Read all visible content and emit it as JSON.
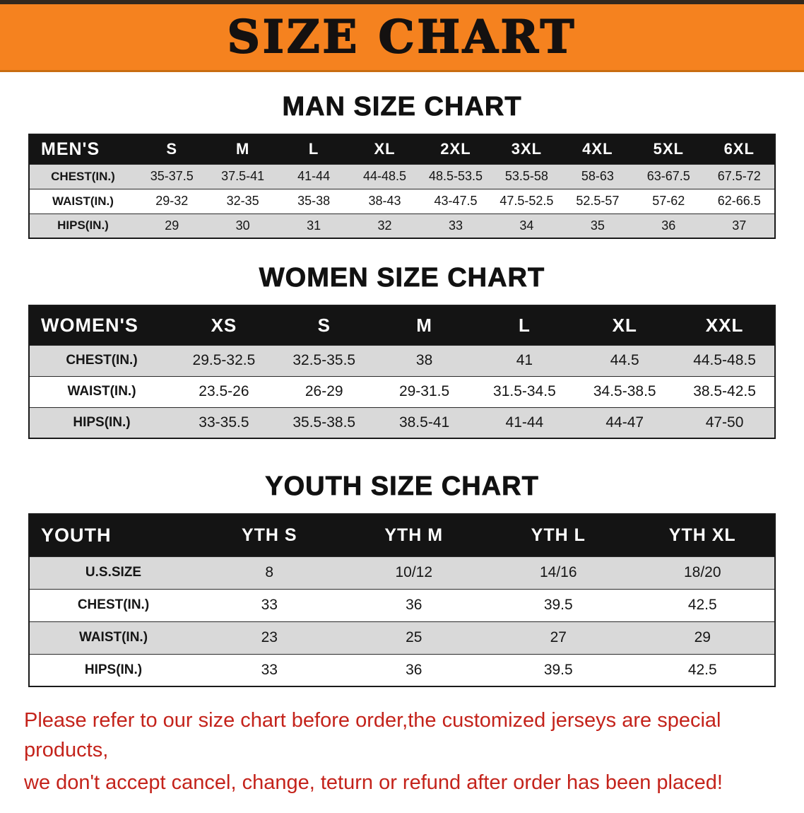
{
  "banner": {
    "title": "SIZE CHART"
  },
  "colors": {
    "banner_bg": "#F5821F",
    "table_header_bg": "#141414",
    "row_shaded": "#D9D9D9",
    "note_red": "#C4231B"
  },
  "chart_data": [
    {
      "type": "table",
      "title": "MAN SIZE CHART",
      "corner_label": "MEN'S",
      "columns": [
        "S",
        "M",
        "L",
        "XL",
        "2XL",
        "3XL",
        "4XL",
        "5XL",
        "6XL"
      ],
      "rows": [
        {
          "label": "CHEST(IN.)",
          "values": [
            "35-37.5",
            "37.5-41",
            "41-44",
            "44-48.5",
            "48.5-53.5",
            "53.5-58",
            "58-63",
            "63-67.5",
            "67.5-72"
          ]
        },
        {
          "label": "WAIST(IN.)",
          "values": [
            "29-32",
            "32-35",
            "35-38",
            "38-43",
            "43-47.5",
            "47.5-52.5",
            "52.5-57",
            "57-62",
            "62-66.5"
          ]
        },
        {
          "label": "HIPS(IN.)",
          "values": [
            "29",
            "30",
            "31",
            "32",
            "33",
            "34",
            "35",
            "36",
            "37"
          ]
        }
      ]
    },
    {
      "type": "table",
      "title": "WOMEN SIZE CHART",
      "corner_label": "WOMEN'S",
      "columns": [
        "XS",
        "S",
        "M",
        "L",
        "XL",
        "XXL"
      ],
      "rows": [
        {
          "label": "CHEST(IN.)",
          "values": [
            "29.5-32.5",
            "32.5-35.5",
            "38",
            "41",
            "44.5",
            "44.5-48.5"
          ]
        },
        {
          "label": "WAIST(IN.)",
          "values": [
            "23.5-26",
            "26-29",
            "29-31.5",
            "31.5-34.5",
            "34.5-38.5",
            "38.5-42.5"
          ]
        },
        {
          "label": "HIPS(IN.)",
          "values": [
            "33-35.5",
            "35.5-38.5",
            "38.5-41",
            "41-44",
            "44-47",
            "47-50"
          ]
        }
      ]
    },
    {
      "type": "table",
      "title": "YOUTH SIZE CHART",
      "corner_label": "YOUTH",
      "columns": [
        "YTH S",
        "YTH M",
        "YTH L",
        "YTH XL"
      ],
      "rows": [
        {
          "label": "U.S.SIZE",
          "values": [
            "8",
            "10/12",
            "14/16",
            "18/20"
          ]
        },
        {
          "label": "CHEST(IN.)",
          "values": [
            "33",
            "36",
            "39.5",
            "42.5"
          ]
        },
        {
          "label": "WAIST(IN.)",
          "values": [
            "23",
            "25",
            "27",
            "29"
          ]
        },
        {
          "label": "HIPS(IN.)",
          "values": [
            "33",
            "36",
            "39.5",
            "42.5"
          ]
        }
      ]
    }
  ],
  "footer": {
    "line1": "Please refer to our size chart before order,the customized jerseys are special products,",
    "line2": "we don't accept cancel, change, teturn or refund after order has been placed!"
  }
}
